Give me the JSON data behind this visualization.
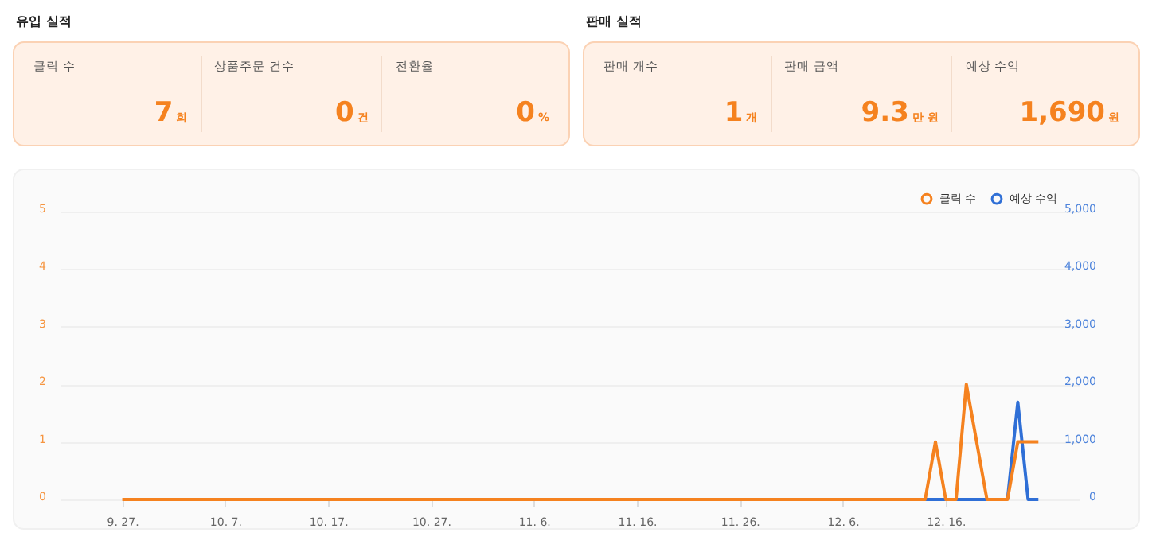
{
  "chart_data": [
    {
      "type": "other",
      "title": "유입 실적",
      "categories": [
        "클릭 수",
        "상품주문 건수",
        "전환율"
      ],
      "value_labels": [
        "7",
        "0",
        "0"
      ],
      "annotations": [
        "회",
        "건",
        "%"
      ]
    },
    {
      "type": "other",
      "title": "판매 실적",
      "categories": [
        "판매 개수",
        "판매 금액",
        "예상 수익"
      ],
      "value_labels": [
        "1",
        "9.3",
        "1,690"
      ],
      "annotations": [
        "개",
        "만 원",
        "원"
      ]
    },
    {
      "type": "line",
      "legend": "top right",
      "grid": "y",
      "x": [
        "--09-27",
        "--09-28",
        "--09-29",
        "--09-30",
        "--10-01",
        "--10-02",
        "--10-03",
        "--10-04",
        "--10-05",
        "--10-06",
        "--10-07",
        "--10-08",
        "--10-09",
        "--10-10",
        "--10-11",
        "--10-12",
        "--10-13",
        "--10-14",
        "--10-15",
        "--10-16",
        "--10-17",
        "--10-18",
        "--10-19",
        "--10-20",
        "--10-21",
        "--10-22",
        "--10-23",
        "--10-24",
        "--10-25",
        "--10-26",
        "--10-27",
        "--10-28",
        "--10-29",
        "--10-30",
        "--10-31",
        "--11-01",
        "--11-02",
        "--11-03",
        "--11-04",
        "--11-05",
        "--11-06",
        "--11-07",
        "--11-08",
        "--11-09",
        "--11-10",
        "--11-11",
        "--11-12",
        "--11-13",
        "--11-14",
        "--11-15",
        "--11-16",
        "--11-17",
        "--11-18",
        "--11-19",
        "--11-20",
        "--11-21",
        "--11-22",
        "--11-23",
        "--11-24",
        "--11-25",
        "--11-26",
        "--11-27",
        "--11-28",
        "--11-29",
        "--11-30",
        "--12-01",
        "--12-02",
        "--12-03",
        "--12-04",
        "--12-05",
        "--12-06",
        "--12-07",
        "--12-08",
        "--12-09",
        "--12-10",
        "--12-11",
        "--12-12",
        "--12-13",
        "--12-14",
        "--12-15",
        "--12-16",
        "--12-17",
        "--12-18",
        "--12-19",
        "--12-20",
        "--12-21",
        "--12-22",
        "--12-23",
        "--12-24",
        "--12-25"
      ],
      "series": [
        {
          "name": "클릭 수",
          "color": "#f5821f",
          "values": [
            0,
            0,
            0,
            0,
            0,
            0,
            0,
            0,
            0,
            0,
            0,
            0,
            0,
            0,
            0,
            0,
            0,
            0,
            0,
            0,
            0,
            0,
            0,
            0,
            0,
            0,
            0,
            0,
            0,
            0,
            0,
            0,
            0,
            0,
            0,
            0,
            0,
            0,
            0,
            0,
            0,
            0,
            0,
            0,
            0,
            0,
            0,
            0,
            0,
            0,
            0,
            0,
            0,
            0,
            0,
            0,
            0,
            0,
            0,
            0,
            0,
            0,
            0,
            0,
            0,
            0,
            0,
            0,
            0,
            0,
            0,
            0,
            0,
            0,
            0,
            0,
            0,
            0,
            0,
            1,
            0,
            0,
            2,
            1,
            0,
            0,
            0,
            1,
            1,
            1
          ]
        },
        {
          "name": "예상 수익",
          "color": "#2f6fd6",
          "axis": "y2",
          "values": [
            null,
            null,
            null,
            null,
            null,
            null,
            null,
            null,
            null,
            null,
            null,
            null,
            null,
            null,
            null,
            null,
            null,
            null,
            null,
            null,
            null,
            null,
            null,
            null,
            null,
            null,
            null,
            null,
            null,
            null,
            null,
            null,
            null,
            null,
            null,
            null,
            null,
            null,
            null,
            null,
            null,
            null,
            null,
            null,
            null,
            null,
            null,
            null,
            null,
            null,
            null,
            null,
            null,
            null,
            null,
            null,
            null,
            null,
            null,
            null,
            null,
            null,
            null,
            null,
            null,
            null,
            null,
            null,
            null,
            null,
            null,
            null,
            null,
            null,
            null,
            null,
            null,
            null,
            0,
            0,
            0,
            0,
            0,
            0,
            0,
            null,
            0,
            1690,
            0,
            0
          ]
        }
      ],
      "xlim": [
        "--09-21",
        "--12-29"
      ],
      "xticks": [
        {
          "value": "--09-27",
          "label": "9. 27."
        },
        {
          "value": "--10-07",
          "label": "10. 7."
        },
        {
          "value": "--10-17",
          "label": "10. 17."
        },
        {
          "value": "--10-27",
          "label": "10. 27."
        },
        {
          "value": "--11-06",
          "label": "11. 6."
        },
        {
          "value": "--11-16",
          "label": "11. 16."
        },
        {
          "value": "--11-26",
          "label": "11. 26."
        },
        {
          "value": "--12-06",
          "label": "12. 6."
        },
        {
          "value": "--12-16",
          "label": "12. 16."
        }
      ],
      "ylim": [
        0,
        5
      ],
      "yticks": [
        0,
        1,
        2,
        3,
        4,
        5
      ],
      "y2lim": [
        0,
        5000
      ],
      "y2ticks": [
        {
          "value": 0,
          "label": "0"
        },
        {
          "value": 1000,
          "label": "1,000"
        },
        {
          "value": 2000,
          "label": "2,000"
        },
        {
          "value": 3000,
          "label": "3,000"
        },
        {
          "value": 4000,
          "label": "4,000"
        },
        {
          "value": 5000,
          "label": "5,000"
        }
      ]
    }
  ]
}
